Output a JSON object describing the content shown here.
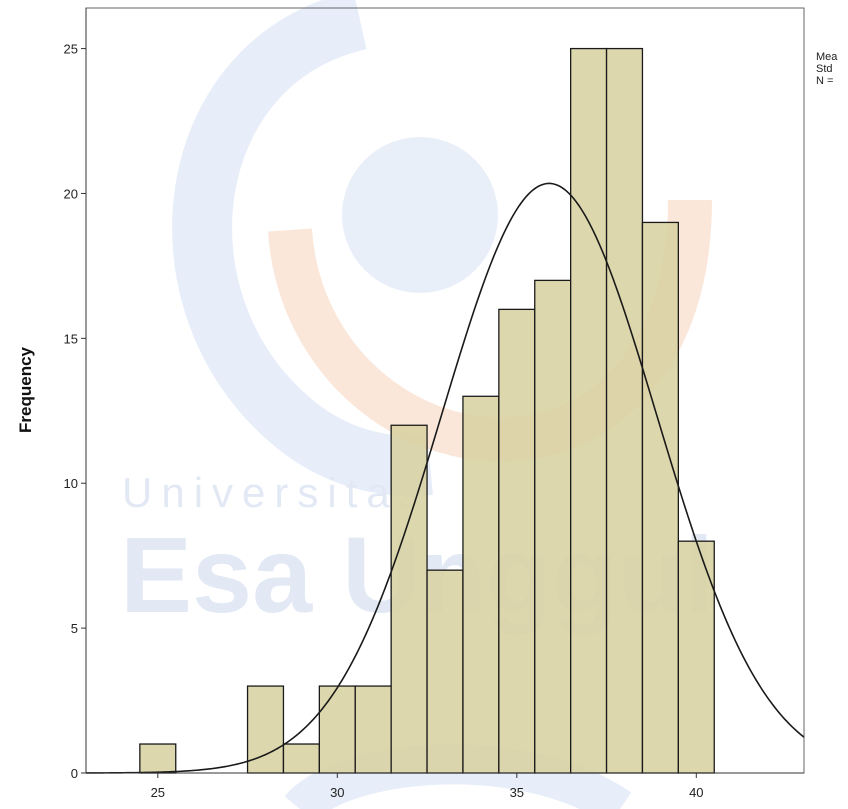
{
  "chart_data": {
    "type": "bar",
    "subtype": "histogram",
    "bins": [
      {
        "from": 24.5,
        "to": 25.5,
        "count": 1
      },
      {
        "from": 25.5,
        "to": 26.5,
        "count": 0
      },
      {
        "from": 26.5,
        "to": 27.5,
        "count": 0
      },
      {
        "from": 27.5,
        "to": 28.5,
        "count": 3
      },
      {
        "from": 28.5,
        "to": 29.5,
        "count": 1
      },
      {
        "from": 29.5,
        "to": 30.5,
        "count": 3
      },
      {
        "from": 30.5,
        "to": 31.5,
        "count": 3
      },
      {
        "from": 31.5,
        "to": 32.5,
        "count": 12
      },
      {
        "from": 32.5,
        "to": 33.5,
        "count": 7
      },
      {
        "from": 33.5,
        "to": 34.5,
        "count": 13
      },
      {
        "from": 34.5,
        "to": 35.5,
        "count": 16
      },
      {
        "from": 35.5,
        "to": 36.5,
        "count": 17
      },
      {
        "from": 36.5,
        "to": 37.5,
        "count": 25
      },
      {
        "from": 37.5,
        "to": 38.5,
        "count": 25
      },
      {
        "from": 38.5,
        "to": 39.5,
        "count": 19
      },
      {
        "from": 39.5,
        "to": 40.5,
        "count": 8
      }
    ],
    "normal_curve": {
      "mean": 35.9,
      "sd": 3.0,
      "n": 153,
      "bin_width": 1
    },
    "xlim": [
      23,
      43
    ],
    "ylim": [
      0,
      26.4
    ],
    "xticks": [
      25,
      30,
      35,
      40
    ],
    "yticks": [
      0,
      5,
      10,
      15,
      20,
      25
    ],
    "ylabel": "Frequency",
    "xlabel": "",
    "grid": false,
    "legend_lines": [
      "Mea",
      "Std",
      "N ="
    ],
    "colors": {
      "bar_fill": "#d8d2a2",
      "bar_stroke": "#1a1a1a",
      "curve": "#1a1a1a",
      "axis": "#333333"
    }
  },
  "watermark": {
    "line1": "Universitas",
    "line2": "Esa Unggul",
    "colors": {
      "blue": "#c5d5ef",
      "orange": "#f6cdb4",
      "text": "#dfe7f4"
    }
  }
}
